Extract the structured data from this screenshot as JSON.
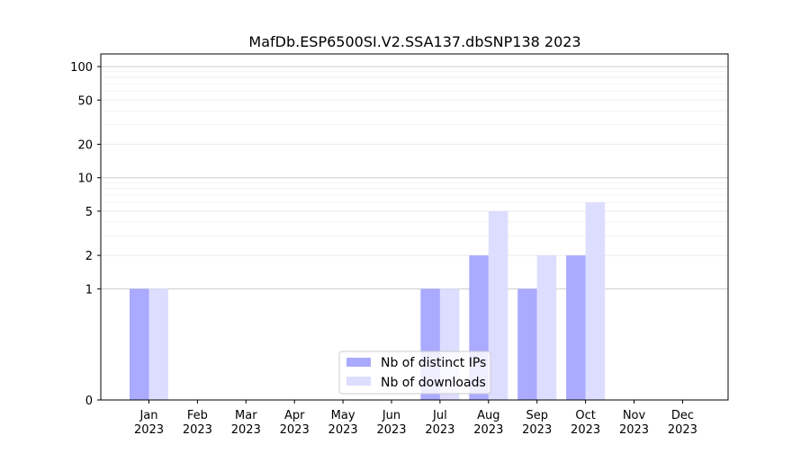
{
  "chart_data": {
    "type": "bar",
    "title": "MafDb.ESP6500SI.V2.SSA137.dbSNP138 2023",
    "categories": [
      [
        "Jan",
        "2023"
      ],
      [
        "Feb",
        "2023"
      ],
      [
        "Mar",
        "2023"
      ],
      [
        "Apr",
        "2023"
      ],
      [
        "May",
        "2023"
      ],
      [
        "Jun",
        "2023"
      ],
      [
        "Jul",
        "2023"
      ],
      [
        "Aug",
        "2023"
      ],
      [
        "Sep",
        "2023"
      ],
      [
        "Oct",
        "2023"
      ],
      [
        "Nov",
        "2023"
      ],
      [
        "Dec",
        "2023"
      ]
    ],
    "series": [
      {
        "name": "Nb of distinct IPs",
        "color": "#aaaaff",
        "values": [
          1,
          0,
          0,
          0,
          0,
          0,
          1,
          2,
          1,
          2,
          0,
          0
        ]
      },
      {
        "name": "Nb of downloads",
        "color": "#ddddff",
        "values": [
          1,
          0,
          0,
          0,
          0,
          0,
          1,
          5,
          2,
          6,
          0,
          0
        ]
      }
    ],
    "y_scale": "symlog",
    "y_ticks": [
      0,
      1,
      2,
      5,
      10,
      20,
      50,
      100
    ],
    "ylim": [
      0,
      130
    ],
    "grid": true,
    "legend_position": "lower-center"
  }
}
